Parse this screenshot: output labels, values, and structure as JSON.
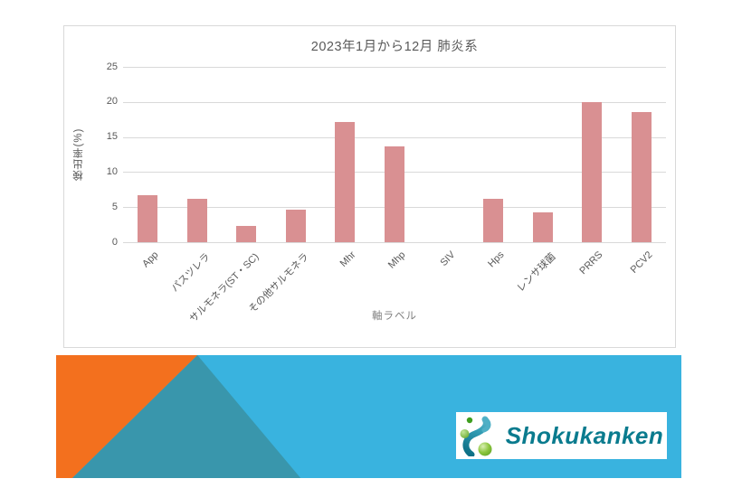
{
  "chart": {
    "title": "2023年1月から12月  肺炎系",
    "y_axis_title": "検出率(%)",
    "x_axis_title": "軸ラベル"
  },
  "chart_data": {
    "type": "bar",
    "title": "2023年1月から12月  肺炎系",
    "categories": [
      "App",
      "パスツレラ",
      "サルモネラ(ST・SC)",
      "その他サルモネラ",
      "Mhr",
      "Mhp",
      "SIV",
      "Hps",
      "レンサ球菌",
      "PRRS",
      "PCV2"
    ],
    "values": [
      6.7,
      6.2,
      2.3,
      4.7,
      17.1,
      13.7,
      0,
      6.2,
      4.2,
      20.0,
      18.6
    ],
    "xlabel": "軸ラベル",
    "ylabel": "検出率(%)",
    "ylim": [
      0,
      25
    ],
    "ytick_step": 5,
    "grid": true,
    "legend": false,
    "bar_color": "#d99092"
  },
  "footer": {
    "logo_text": "Shokukanken"
  },
  "colors": {
    "bar": "#d99092",
    "gridline": "#d9d9d9",
    "chart_border": "#d9d9d9",
    "axis_text": "#595959",
    "band_cyan": "#39b3df",
    "band_orange": "#f3701e",
    "band_teal": "#3996ac",
    "logo_text": "#0a7b8e",
    "logo_swirl_top": "#5fb7cc",
    "logo_swirl_bottom": "#0d7086",
    "logo_ball_green": "#7cc142"
  }
}
